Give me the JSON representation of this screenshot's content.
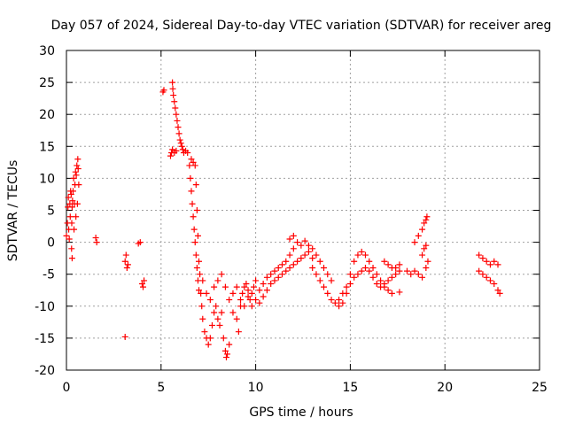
{
  "chart_data": {
    "type": "scatter",
    "title": "Day 057 of 2024, Sidereal Day-to-day VTEC variation (SDTVAR) for receiver areg",
    "xlabel": "GPS time / hours",
    "ylabel": "SDTVAR / TECUs",
    "xlim": [
      0,
      25
    ],
    "ylim": [
      -20,
      30
    ],
    "x_ticks": [
      0,
      5,
      10,
      15,
      20,
      25
    ],
    "y_ticks": [
      -20,
      -15,
      -10,
      -5,
      0,
      5,
      10,
      15,
      20,
      25,
      30
    ],
    "grid": true,
    "marker": "+",
    "series_color": "#ff0000",
    "series": [
      {
        "name": "SDTVAR",
        "points": [
          [
            0.0,
            1.0
          ],
          [
            0.05,
            3.0
          ],
          [
            0.08,
            5.5
          ],
          [
            0.1,
            7.0
          ],
          [
            0.12,
            2.0
          ],
          [
            0.15,
            0.5
          ],
          [
            0.18,
            6.0
          ],
          [
            0.2,
            4.0
          ],
          [
            0.22,
            8.0
          ],
          [
            0.25,
            7.5
          ],
          [
            0.27,
            -1.0
          ],
          [
            0.28,
            3.0
          ],
          [
            0.3,
            -2.5
          ],
          [
            0.3,
            5.5
          ],
          [
            0.32,
            6.5
          ],
          [
            0.35,
            8.0
          ],
          [
            0.38,
            10.0
          ],
          [
            0.4,
            2.0
          ],
          [
            0.42,
            6.0
          ],
          [
            0.45,
            9.0
          ],
          [
            0.48,
            11.0
          ],
          [
            0.5,
            4.0
          ],
          [
            0.52,
            10.5
          ],
          [
            0.55,
            12.0
          ],
          [
            0.58,
            6.0
          ],
          [
            0.6,
            13.0
          ],
          [
            0.62,
            11.5
          ],
          [
            0.65,
            9.0
          ],
          [
            1.55,
            0.7
          ],
          [
            1.6,
            0.0
          ],
          [
            3.1,
            -3.0
          ],
          [
            3.15,
            -2.0
          ],
          [
            3.2,
            -4.0
          ],
          [
            3.25,
            -3.5
          ],
          [
            3.1,
            -14.8
          ],
          [
            3.8,
            -0.2
          ],
          [
            3.9,
            0.0
          ],
          [
            4.0,
            -6.5
          ],
          [
            4.05,
            -7.0
          ],
          [
            4.1,
            -6.0
          ],
          [
            5.1,
            23.5
          ],
          [
            5.15,
            23.8
          ],
          [
            5.6,
            25.0
          ],
          [
            5.62,
            24.0
          ],
          [
            5.65,
            23.0
          ],
          [
            5.7,
            22.0
          ],
          [
            5.75,
            21.0
          ],
          [
            5.8,
            20.0
          ],
          [
            5.85,
            19.0
          ],
          [
            5.9,
            18.0
          ],
          [
            5.95,
            17.0
          ],
          [
            6.0,
            16.0
          ],
          [
            6.05,
            15.5
          ],
          [
            6.1,
            15.0
          ],
          [
            6.15,
            14.5
          ],
          [
            6.2,
            14.0
          ],
          [
            6.3,
            14.3
          ],
          [
            6.4,
            14.0
          ],
          [
            5.5,
            13.5
          ],
          [
            5.55,
            14.0
          ],
          [
            5.6,
            14.5
          ],
          [
            5.7,
            14.0
          ],
          [
            5.8,
            14.3
          ],
          [
            6.5,
            12.0
          ],
          [
            6.55,
            10.0
          ],
          [
            6.6,
            8.0
          ],
          [
            6.65,
            6.0
          ],
          [
            6.7,
            4.0
          ],
          [
            6.75,
            2.0
          ],
          [
            6.8,
            0.0
          ],
          [
            6.85,
            -2.0
          ],
          [
            6.9,
            -4.0
          ],
          [
            6.95,
            -6.0
          ],
          [
            7.0,
            -7.5
          ],
          [
            6.6,
            13.0
          ],
          [
            6.7,
            12.5
          ],
          [
            6.8,
            12.0
          ],
          [
            6.85,
            9.0
          ],
          [
            6.9,
            5.0
          ],
          [
            6.95,
            1.0
          ],
          [
            7.0,
            -3.0
          ],
          [
            7.05,
            -5.0
          ],
          [
            7.1,
            -8.0
          ],
          [
            7.15,
            -10.0
          ],
          [
            7.2,
            -12.0
          ],
          [
            7.3,
            -14.0
          ],
          [
            7.4,
            -15.0
          ],
          [
            7.5,
            -16.0
          ],
          [
            7.6,
            -15.0
          ],
          [
            7.7,
            -13.0
          ],
          [
            7.8,
            -11.0
          ],
          [
            7.9,
            -10.0
          ],
          [
            8.0,
            -12.0
          ],
          [
            8.1,
            -13.0
          ],
          [
            8.2,
            -11.0
          ],
          [
            8.3,
            -15.0
          ],
          [
            8.4,
            -17.0
          ],
          [
            8.45,
            -18.0
          ],
          [
            8.5,
            -17.5
          ],
          [
            8.6,
            -16.0
          ],
          [
            7.2,
            -6.0
          ],
          [
            7.4,
            -8.0
          ],
          [
            7.6,
            -9.0
          ],
          [
            7.8,
            -7.0
          ],
          [
            8.0,
            -6.0
          ],
          [
            8.2,
            -5.0
          ],
          [
            8.4,
            -7.0
          ],
          [
            8.6,
            -9.0
          ],
          [
            8.8,
            -11.0
          ],
          [
            9.0,
            -12.0
          ],
          [
            9.1,
            -14.0
          ],
          [
            9.2,
            -10.0
          ],
          [
            9.3,
            -8.0
          ],
          [
            9.4,
            -7.0
          ],
          [
            9.5,
            -6.5
          ],
          [
            9.6,
            -7.5
          ],
          [
            9.7,
            -9.0
          ],
          [
            9.8,
            -8.0
          ],
          [
            9.9,
            -7.0
          ],
          [
            10.0,
            -6.0
          ],
          [
            8.8,
            -8.0
          ],
          [
            9.0,
            -7.0
          ],
          [
            9.2,
            -9.0
          ],
          [
            9.4,
            -10.0
          ],
          [
            9.6,
            -8.5
          ],
          [
            9.8,
            -10.0
          ],
          [
            10.0,
            -9.0
          ],
          [
            10.2,
            -7.5
          ],
          [
            10.4,
            -6.5
          ],
          [
            10.6,
            -5.5
          ],
          [
            10.8,
            -5.0
          ],
          [
            11.0,
            -4.5
          ],
          [
            11.2,
            -4.0
          ],
          [
            11.4,
            -3.5
          ],
          [
            11.6,
            -3.0
          ],
          [
            11.8,
            -2.0
          ],
          [
            12.0,
            -1.0
          ],
          [
            10.2,
            -9.5
          ],
          [
            10.4,
            -8.5
          ],
          [
            10.6,
            -7.5
          ],
          [
            10.8,
            -6.5
          ],
          [
            11.0,
            -6.0
          ],
          [
            11.2,
            -5.5
          ],
          [
            11.4,
            -5.0
          ],
          [
            11.6,
            -4.5
          ],
          [
            11.8,
            -4.0
          ],
          [
            12.0,
            -3.5
          ],
          [
            12.2,
            -3.0
          ],
          [
            12.4,
            -2.5
          ],
          [
            12.6,
            -2.0
          ],
          [
            12.8,
            -1.5
          ],
          [
            13.0,
            -2.5
          ],
          [
            11.8,
            0.5
          ],
          [
            12.0,
            1.0
          ],
          [
            12.2,
            0.0
          ],
          [
            12.4,
            -0.5
          ],
          [
            12.6,
            0.2
          ],
          [
            12.8,
            -0.5
          ],
          [
            13.0,
            -1.0
          ],
          [
            13.2,
            -2.0
          ],
          [
            13.4,
            -3.0
          ],
          [
            13.6,
            -4.0
          ],
          [
            13.8,
            -5.0
          ],
          [
            14.0,
            -6.0
          ],
          [
            13.0,
            -4.0
          ],
          [
            13.2,
            -5.0
          ],
          [
            13.4,
            -6.0
          ],
          [
            13.6,
            -7.0
          ],
          [
            13.8,
            -8.0
          ],
          [
            14.0,
            -9.0
          ],
          [
            14.2,
            -9.5
          ],
          [
            14.4,
            -9.0
          ],
          [
            14.6,
            -8.0
          ],
          [
            14.8,
            -7.0
          ],
          [
            15.0,
            -5.0
          ],
          [
            15.2,
            -3.0
          ],
          [
            15.4,
            -2.0
          ],
          [
            15.6,
            -1.5
          ],
          [
            15.8,
            -2.0
          ],
          [
            16.0,
            -3.0
          ],
          [
            16.2,
            -4.0
          ],
          [
            16.4,
            -5.0
          ],
          [
            16.6,
            -6.0
          ],
          [
            16.8,
            -7.0
          ],
          [
            17.0,
            -7.5
          ],
          [
            17.2,
            -8.0
          ],
          [
            14.4,
            -10.0
          ],
          [
            14.6,
            -9.5
          ],
          [
            14.8,
            -8.0
          ],
          [
            15.0,
            -6.5
          ],
          [
            15.2,
            -5.5
          ],
          [
            15.4,
            -5.0
          ],
          [
            15.6,
            -4.5
          ],
          [
            15.8,
            -4.0
          ],
          [
            16.0,
            -4.5
          ],
          [
            16.2,
            -5.5
          ],
          [
            16.4,
            -6.5
          ],
          [
            16.6,
            -7.0
          ],
          [
            16.8,
            -6.5
          ],
          [
            17.0,
            -6.0
          ],
          [
            17.2,
            -5.5
          ],
          [
            17.4,
            -5.0
          ],
          [
            17.6,
            -4.5
          ],
          [
            16.8,
            -3.0
          ],
          [
            17.0,
            -3.5
          ],
          [
            17.2,
            -4.0
          ],
          [
            17.4,
            -4.0
          ],
          [
            17.6,
            -3.5
          ],
          [
            17.6,
            -7.8
          ],
          [
            18.0,
            -4.5
          ],
          [
            18.2,
            -5.0
          ],
          [
            18.4,
            -4.5
          ],
          [
            18.6,
            -5.0
          ],
          [
            18.8,
            -5.5
          ],
          [
            19.0,
            -4.0
          ],
          [
            19.1,
            -3.0
          ],
          [
            18.4,
            0.0
          ],
          [
            18.6,
            1.0
          ],
          [
            18.8,
            2.0
          ],
          [
            18.9,
            3.0
          ],
          [
            19.0,
            3.5
          ],
          [
            19.05,
            4.0
          ],
          [
            18.8,
            -2.0
          ],
          [
            18.9,
            -1.0
          ],
          [
            19.0,
            -0.5
          ],
          [
            21.8,
            -2.0
          ],
          [
            22.0,
            -2.5
          ],
          [
            22.2,
            -3.0
          ],
          [
            22.4,
            -3.5
          ],
          [
            22.6,
            -3.0
          ],
          [
            22.8,
            -3.5
          ],
          [
            21.8,
            -4.5
          ],
          [
            22.0,
            -5.0
          ],
          [
            22.2,
            -5.5
          ],
          [
            22.4,
            -6.0
          ],
          [
            22.6,
            -6.5
          ],
          [
            22.8,
            -7.5
          ],
          [
            22.9,
            -8.0
          ]
        ]
      }
    ]
  }
}
